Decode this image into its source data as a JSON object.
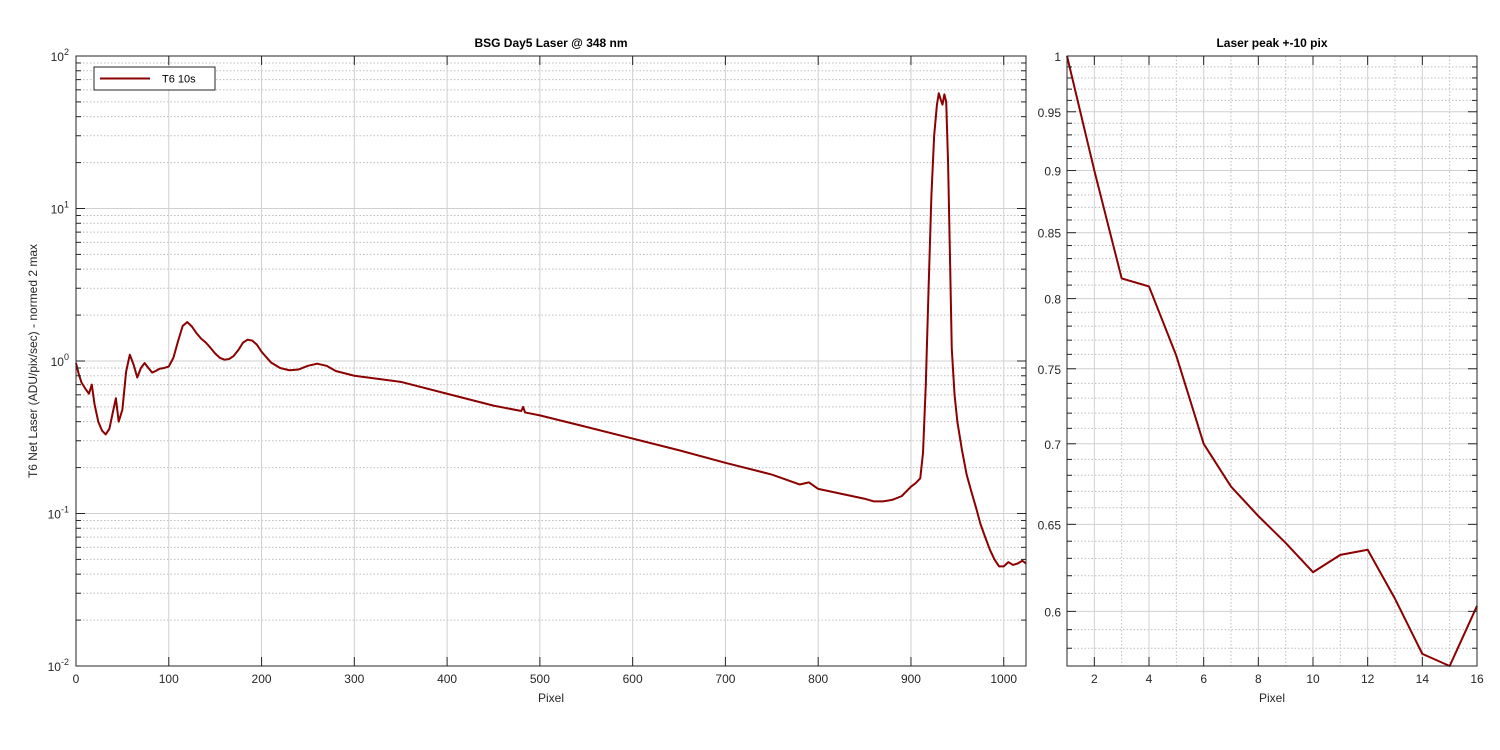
{
  "colors": {
    "series": "#8b0000",
    "grid": "#bdbdbd",
    "axis": "#262626",
    "background": "#ffffff"
  },
  "chart_data": [
    {
      "type": "line",
      "title": "BSG  Day5 Laser @ 348 nm",
      "xlabel": "Pixel",
      "ylabel": "T6 Net Laser (ADU/pix/sec) - normed 2 max",
      "yscale": "log",
      "xlim": [
        0,
        1024
      ],
      "ylim": [
        0.01,
        100
      ],
      "grid": true,
      "minor_grid": true,
      "legend": "top-left",
      "x_ticks": [
        0,
        100,
        200,
        300,
        400,
        500,
        600,
        700,
        800,
        900,
        1000
      ],
      "y_ticks": [
        {
          "value": 0.01,
          "base": "10",
          "exp": "-2"
        },
        {
          "value": 0.1,
          "base": "10",
          "exp": "-1"
        },
        {
          "value": 1,
          "base": "10",
          "exp": "0"
        },
        {
          "value": 10,
          "base": "10",
          "exp": "1"
        },
        {
          "value": 100,
          "base": "10",
          "exp": "2"
        }
      ],
      "series": [
        {
          "name": "T6 10s",
          "points": [
            [
              0,
              0.97
            ],
            [
              3,
              0.82
            ],
            [
              6,
              0.72
            ],
            [
              10,
              0.66
            ],
            [
              14,
              0.61
            ],
            [
              17,
              0.7
            ],
            [
              20,
              0.52
            ],
            [
              24,
              0.4
            ],
            [
              28,
              0.35
            ],
            [
              32,
              0.33
            ],
            [
              36,
              0.36
            ],
            [
              40,
              0.47
            ],
            [
              43,
              0.57
            ],
            [
              46,
              0.4
            ],
            [
              50,
              0.48
            ],
            [
              54,
              0.85
            ],
            [
              58,
              1.1
            ],
            [
              62,
              0.95
            ],
            [
              66,
              0.78
            ],
            [
              70,
              0.9
            ],
            [
              74,
              0.97
            ],
            [
              78,
              0.9
            ],
            [
              82,
              0.84
            ],
            [
              86,
              0.86
            ],
            [
              90,
              0.89
            ],
            [
              95,
              0.9
            ],
            [
              100,
              0.92
            ],
            [
              105,
              1.05
            ],
            [
              110,
              1.35
            ],
            [
              115,
              1.7
            ],
            [
              120,
              1.8
            ],
            [
              125,
              1.68
            ],
            [
              130,
              1.52
            ],
            [
              135,
              1.4
            ],
            [
              140,
              1.32
            ],
            [
              145,
              1.22
            ],
            [
              150,
              1.12
            ],
            [
              155,
              1.05
            ],
            [
              160,
              1.02
            ],
            [
              165,
              1.03
            ],
            [
              170,
              1.08
            ],
            [
              175,
              1.18
            ],
            [
              180,
              1.32
            ],
            [
              185,
              1.38
            ],
            [
              190,
              1.36
            ],
            [
              195,
              1.28
            ],
            [
              200,
              1.15
            ],
            [
              210,
              0.98
            ],
            [
              220,
              0.9
            ],
            [
              230,
              0.87
            ],
            [
              240,
              0.88
            ],
            [
              250,
              0.93
            ],
            [
              260,
              0.96
            ],
            [
              270,
              0.93
            ],
            [
              280,
              0.86
            ],
            [
              300,
              0.8
            ],
            [
              350,
              0.73
            ],
            [
              400,
              0.61
            ],
            [
              450,
              0.51
            ],
            [
              480,
              0.47
            ],
            [
              482,
              0.5
            ],
            [
              484,
              0.46
            ],
            [
              500,
              0.44
            ],
            [
              550,
              0.37
            ],
            [
              600,
              0.31
            ],
            [
              650,
              0.26
            ],
            [
              700,
              0.215
            ],
            [
              750,
              0.18
            ],
            [
              780,
              0.155
            ],
            [
              790,
              0.16
            ],
            [
              800,
              0.145
            ],
            [
              850,
              0.125
            ],
            [
              860,
              0.12
            ],
            [
              870,
              0.12
            ],
            [
              880,
              0.123
            ],
            [
              890,
              0.13
            ],
            [
              900,
              0.15
            ],
            [
              905,
              0.158
            ],
            [
              910,
              0.17
            ],
            [
              913,
              0.25
            ],
            [
              916,
              0.7
            ],
            [
              919,
              3
            ],
            [
              922,
              12
            ],
            [
              925,
              30
            ],
            [
              928,
              48
            ],
            [
              930,
              57
            ],
            [
              932,
              52
            ],
            [
              934,
              48
            ],
            [
              936,
              56
            ],
            [
              938,
              50
            ],
            [
              940,
              20
            ],
            [
              942,
              5
            ],
            [
              944,
              1.2
            ],
            [
              947,
              0.6
            ],
            [
              950,
              0.4
            ],
            [
              955,
              0.26
            ],
            [
              960,
              0.18
            ],
            [
              965,
              0.14
            ],
            [
              970,
              0.11
            ],
            [
              975,
              0.085
            ],
            [
              980,
              0.07
            ],
            [
              985,
              0.058
            ],
            [
              990,
              0.05
            ],
            [
              995,
              0.045
            ],
            [
              1000,
              0.045
            ],
            [
              1005,
              0.048
            ],
            [
              1010,
              0.046
            ],
            [
              1015,
              0.047
            ],
            [
              1020,
              0.049
            ],
            [
              1024,
              0.047
            ]
          ]
        }
      ]
    },
    {
      "type": "line",
      "title": "Laser peak +-10 pix",
      "xlabel": "Pixel",
      "ylabel": "",
      "yscale": "log",
      "xlim": [
        1,
        16
      ],
      "ylim": [
        0.5706,
        1.0
      ],
      "grid": true,
      "minor_grid": true,
      "x_ticks": [
        2,
        4,
        6,
        8,
        10,
        12,
        14,
        16
      ],
      "y_ticks": [
        0.6,
        0.65,
        0.7,
        0.75,
        0.8,
        0.85,
        0.9,
        0.95,
        1
      ],
      "y_tick_labels": [
        "0.6",
        "0.65",
        "0.7",
        "0.75",
        "0.8",
        "0.85",
        "0.9",
        "0.95",
        "1"
      ],
      "series": [
        {
          "points": [
            [
              1,
              1.0
            ],
            [
              2,
              0.9
            ],
            [
              3,
              0.815
            ],
            [
              4,
              0.809
            ],
            [
              5,
              0.759
            ],
            [
              6,
              0.7
            ],
            [
              7,
              0.673
            ],
            [
              8,
              0.655
            ],
            [
              9,
              0.639
            ],
            [
              10,
              0.622
            ],
            [
              11,
              0.632
            ],
            [
              12,
              0.635
            ],
            [
              13,
              0.607
            ],
            [
              14,
              0.577
            ],
            [
              15,
              0.5706
            ],
            [
              16,
              0.603
            ]
          ]
        }
      ]
    }
  ]
}
